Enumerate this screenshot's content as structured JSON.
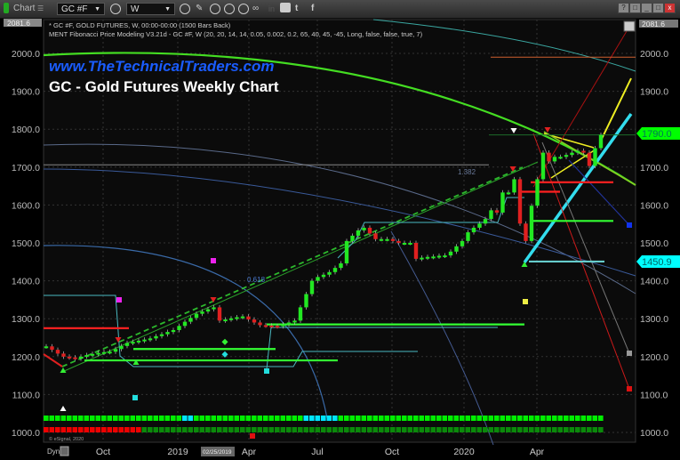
{
  "toolbar": {
    "window_title": "Chart",
    "window_badge": "☰",
    "symbol": "GC #F",
    "interval": "W",
    "icons": [
      "settings-icon",
      "clock-icon",
      "pencil-icon",
      "chart-icon",
      "play-icon",
      "alert-icon",
      "link-icon",
      "linkedin-icon",
      "comment-icon",
      "twitter-icon",
      "facebook-icon"
    ],
    "linkedin": "in",
    "twitter": "t",
    "facebook": "f",
    "window_controls": [
      "?",
      "□",
      "_",
      "□",
      "x"
    ]
  },
  "study_lines": [
    "* GC #F, GOLD FUTURES, W, 00:00-00:00 (1500 Bars Back)",
    "MENT Fibonacci Price Modeling V3.21d - GC #F, W (20, 20, 14, 14, 0.05, 0.002, 0.2, 65, 40, 45, -45, Long, false, false, true, 7)"
  ],
  "watermark": "www.TheTechnicalTraders.com",
  "copyright": "© eSignal, 2020",
  "dyn_label": "Dyn",
  "cursor_date": "02/25/2019",
  "chart_data": {
    "type": "candlestick",
    "title": "GC - Gold Futures Weekly Chart",
    "ylim": [
      1000,
      2081.6
    ],
    "y_ticks": [
      "2000.0",
      "1900.0",
      "1800.0",
      "1700.0",
      "1600.0",
      "1500.0",
      "1400.0",
      "1300.0",
      "1200.0",
      "1100.0",
      "1000.0"
    ],
    "x_ticks": [
      "Oct",
      "2019",
      "Apr",
      "Jul",
      "Oct",
      "2020",
      "Apr"
    ],
    "grid": true,
    "price_tags": [
      {
        "label": "2081.6",
        "color": "#888888"
      },
      {
        "label": "1790.0",
        "color": "#00ff00"
      },
      {
        "label": "1450.9",
        "color": "#00ffff"
      }
    ],
    "fib_labels": [
      "1.382",
      "0.618"
    ],
    "closes": [
      1227,
      1218,
      1208,
      1200,
      1198,
      1195,
      1200,
      1204,
      1207,
      1210,
      1212,
      1213,
      1220,
      1228,
      1236,
      1239,
      1242,
      1245,
      1248,
      1254,
      1259,
      1265,
      1270,
      1281,
      1292,
      1302,
      1313,
      1319,
      1325,
      1330,
      1295,
      1298,
      1301,
      1304,
      1306,
      1298,
      1290,
      1283,
      1282,
      1281,
      1280,
      1285,
      1290,
      1295,
      1330,
      1365,
      1400,
      1410,
      1416,
      1423,
      1434,
      1446,
      1505,
      1519,
      1533,
      1540,
      1525,
      1510,
      1510,
      1510,
      1505,
      1500,
      1500,
      1500,
      1458,
      1461,
      1463,
      1464,
      1466,
      1467,
      1477,
      1491,
      1505,
      1528,
      1540,
      1551,
      1563,
      1586,
      1580,
      1633,
      1633,
      1668,
      1551,
      1505,
      1598,
      1668,
      1738,
      1715,
      1727,
      1727,
      1732,
      1738,
      1743,
      1738,
      1703,
      1750,
      1785
    ],
    "levels": [
      {
        "price": 1275,
        "color": "#ff2020"
      },
      {
        "price": 1190,
        "color": "#33ff33"
      },
      {
        "price": 1220,
        "color": "#33ff33"
      },
      {
        "price": 1285,
        "color": "#33ff33"
      },
      {
        "price": 1706,
        "color": "#888888"
      },
      {
        "price": 1660,
        "color": "#ff2020"
      },
      {
        "price": 1635,
        "color": "#ff2020"
      },
      {
        "price": 1558,
        "color": "#33ff33"
      },
      {
        "price": 1450.9,
        "color": "#6cc"
      },
      {
        "price": 1990,
        "color": "#d06030"
      },
      {
        "price": 1785,
        "color": "#1d6b2a"
      }
    ],
    "colors": {
      "up": "#22e822",
      "down": "#e02020"
    },
    "signal_rows": [
      [
        {
          "color": "#00ee00",
          "count": 24
        },
        {
          "color": "#00e5ff",
          "count": 2
        },
        {
          "color": "#00ee00",
          "count": 19
        },
        {
          "color": "#00e5ff",
          "count": 6
        },
        {
          "color": "#00ee00",
          "count": 46
        }
      ],
      [
        {
          "color": "#ee0000",
          "count": 17
        },
        {
          "color": "#0a8a0a",
          "count": 80
        }
      ]
    ]
  }
}
